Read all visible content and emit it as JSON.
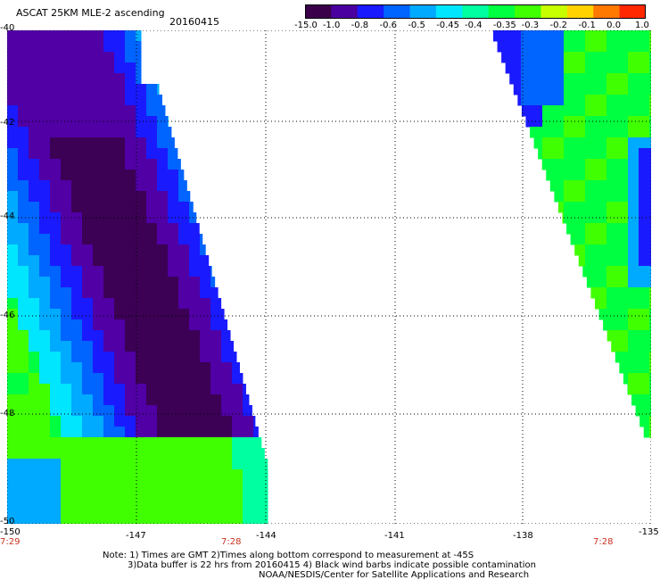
{
  "title": {
    "product": "ASCAT 25KM MLE-2 ascending",
    "date": "20160415"
  },
  "colorbar": {
    "ticks": [
      "-15.0",
      "-1.0",
      "-0.8",
      "-0.6",
      "-0.5",
      "-0.45",
      "-0.4",
      "-0.35",
      "-0.3",
      "-0.2",
      "-0.1",
      "0.0",
      "1.0"
    ],
    "colors": [
      "#3a004a",
      "#4a00a0",
      "#1a1aff",
      "#0064ff",
      "#00aaff",
      "#00e6ff",
      "#00ffa0",
      "#00ff40",
      "#40ff00",
      "#c8ff00",
      "#ffd200",
      "#ff7800",
      "#ff2800"
    ]
  },
  "map": {
    "lat_labels": [
      "-40",
      "-42",
      "-44",
      "-46",
      "-48",
      "-50"
    ],
    "lon_labels": [
      "-150",
      "-147",
      "-144",
      "-141",
      "-138",
      "-135"
    ],
    "time_labels": [
      "7:29",
      "7:28",
      "7:28"
    ]
  },
  "notes": {
    "line1": "Note: 1) Times are GMT 2)Times along bottom correspond to measurement at -45S",
    "line2": "3)Data buffer is 22 hrs from 20160415 4) Black wind barbs indicate possible contamination",
    "line3": "NOAA/NESDIS/Center for Satellite Applications and Research"
  }
}
